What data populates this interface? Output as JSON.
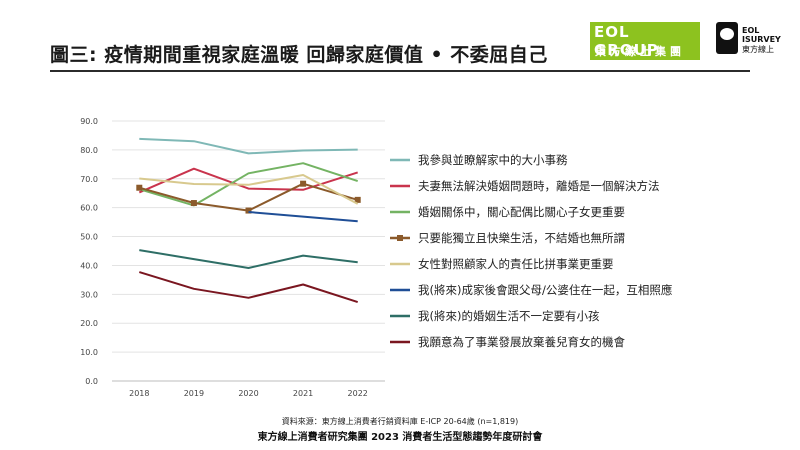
{
  "header": {
    "title": "圖三: 疫情期間重視家庭溫暖 回歸家庭價值 • 不委屈自己",
    "logo_eol_top": "EOL GROUP",
    "logo_eol_bottom": "東方線上集團",
    "logo_isurvey_line1": "EOL",
    "logo_isurvey_line2": "ISURVEY",
    "logo_isurvey_line3": "東方線上"
  },
  "footer": {
    "source": "資料來源：東方線上消費者行銷資料庫 E-ICP 20-64歲 (n=1,819)",
    "org": "東方線上消費者研究集團 2023 消費者生活型態趨勢年度研討會"
  },
  "chart_data": {
    "type": "line",
    "categories": [
      "2018",
      "2019",
      "2020",
      "2021",
      "2022"
    ],
    "ylim": [
      0,
      90
    ],
    "yticks": [
      "0.0",
      "10.0",
      "20.0",
      "30.0",
      "40.0",
      "50.0",
      "60.0",
      "70.0",
      "80.0",
      "90.0"
    ],
    "grid": true,
    "legend_position": "right",
    "series": [
      {
        "name": "我參與並瞭解家中的大小事務",
        "color": "#7fb8b6",
        "marker": "none",
        "values": [
          83.8,
          83.0,
          78.8,
          79.8,
          80.1
        ]
      },
      {
        "name": "夫妻無法解決婚姻問題時，離婚是一個解決方法",
        "color": "#c9344d",
        "marker": "none",
        "values": [
          65.3,
          73.5,
          66.6,
          66.2,
          72.2
        ]
      },
      {
        "name": "婚姻關係中，關心配偶比關心子女更重要",
        "color": "#74b363",
        "marker": "none",
        "values": [
          66.4,
          60.8,
          71.9,
          75.4,
          69.2
        ]
      },
      {
        "name": "只要能獨立且快樂生活，不結婚也無所謂",
        "color": "#8b5a2b",
        "marker": "square",
        "values": [
          66.9,
          61.6,
          59.0,
          68.3,
          62.7
        ]
      },
      {
        "name": "女性對照顧家人的責任比拼事業更重要",
        "color": "#d8c98e",
        "marker": "none",
        "values": [
          70.1,
          68.2,
          67.9,
          71.3,
          61.3
        ]
      },
      {
        "name": "我(將來)成家後會跟父母/公婆住在一起，互相照應",
        "color": "#1f4e96",
        "marker": "none",
        "values": [
          null,
          null,
          58.5,
          56.9,
          55.3
        ]
      },
      {
        "name": "我(將來)的婚姻生活不一定要有小孩",
        "color": "#2e6e66",
        "marker": "none",
        "values": [
          45.3,
          42.2,
          39.1,
          43.4,
          41.1
        ]
      },
      {
        "name": "我願意為了事業發展放棄養兒育女的機會",
        "color": "#7a1620",
        "marker": "none",
        "values": [
          37.7,
          31.9,
          28.8,
          33.4,
          27.3
        ]
      }
    ]
  }
}
